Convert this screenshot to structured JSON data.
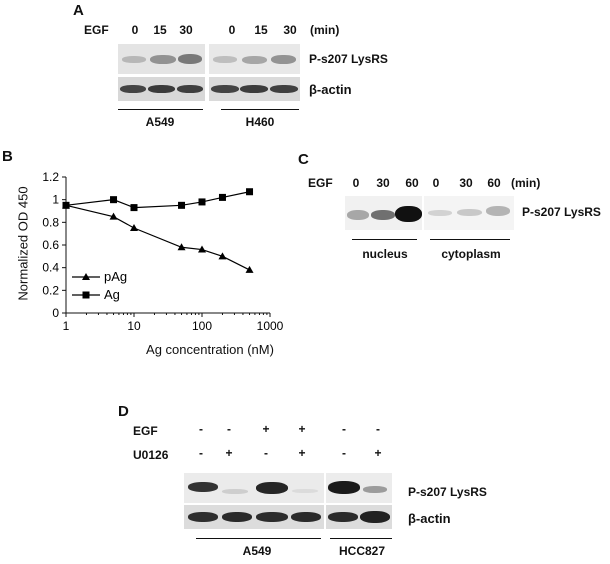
{
  "panel_a": {
    "letter": "A",
    "treatment_label": "EGF",
    "timepoints": [
      "0",
      "15",
      "30",
      "0",
      "15",
      "30"
    ],
    "unit": "(min)",
    "rows": [
      "P-s207 LysRS",
      "β-actin"
    ],
    "cell_lines": [
      "A549",
      "H460"
    ]
  },
  "panel_b": {
    "letter": "B"
  },
  "panel_c": {
    "letter": "C",
    "treatment_label": "EGF",
    "timepoints": [
      "0",
      "30",
      "60",
      "0",
      "30",
      "60"
    ],
    "unit": "(min)",
    "row": "P-s207 LysRS",
    "fractions": [
      "nucleus",
      "cytoplasm"
    ]
  },
  "panel_d": {
    "letter": "D",
    "rows_treat": [
      {
        "label": "EGF",
        "signs": [
          "-",
          "-",
          "+",
          "+",
          "-",
          "-"
        ]
      },
      {
        "label": "U0126",
        "signs": [
          "-",
          "+",
          "-",
          "+",
          "-",
          "+"
        ]
      }
    ],
    "blot_rows": [
      "P-s207 LysRS",
      "β-actin"
    ],
    "cell_lines": [
      "A549",
      "HCC827"
    ]
  },
  "chart_data": {
    "type": "line",
    "title": "",
    "xlabel": "Ag concentration (nM)",
    "ylabel": "Normalized OD 450",
    "xscale": "log",
    "xlim": [
      1,
      1000
    ],
    "ylim": [
      0,
      1.2
    ],
    "x_ticks": [
      "1",
      "10",
      "100",
      "1000"
    ],
    "y_ticks": [
      "0",
      "0.2",
      "0.4",
      "0.6",
      "0.8",
      "1",
      "1.2"
    ],
    "legend_position": "bottom-left",
    "series": [
      {
        "name": "pAg",
        "marker": "triangle",
        "x": [
          1,
          5,
          10,
          50,
          100,
          200,
          500
        ],
        "y": [
          0.95,
          0.85,
          0.75,
          0.58,
          0.56,
          0.5,
          0.38
        ]
      },
      {
        "name": "Ag",
        "marker": "square",
        "x": [
          1,
          5,
          10,
          50,
          100,
          200,
          500
        ],
        "y": [
          0.95,
          1.0,
          0.93,
          0.95,
          0.98,
          1.02,
          1.07
        ]
      }
    ]
  }
}
